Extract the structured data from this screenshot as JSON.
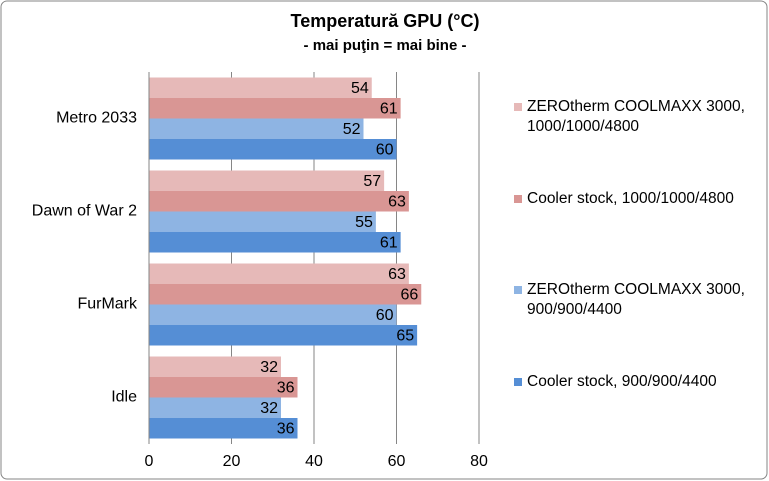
{
  "chart_data": {
    "type": "bar",
    "orientation": "horizontal",
    "title": "Temperatură  GPU (°C)",
    "subtitle": "- mai puţin = mai bine -",
    "categories": [
      "Metro 2033",
      "Dawn of War 2",
      "FurMark",
      "Idle"
    ],
    "series": [
      {
        "name": "ZEROtherm COOLMAXX 3000, 1000/1000/4800",
        "color": "#e6b9b8",
        "values": [
          54,
          57,
          63,
          32
        ]
      },
      {
        "name": "Cooler stock, 1000/1000/4800",
        "color": "#d99694",
        "values": [
          61,
          63,
          66,
          36
        ]
      },
      {
        "name": "ZEROtherm COOLMAXX 3000, 900/900/4400",
        "color": "#8eb4e3",
        "values": [
          52,
          55,
          60,
          32
        ]
      },
      {
        "name": "Cooler stock, 900/900/4400",
        "color": "#558ed5",
        "values": [
          60,
          61,
          65,
          36
        ]
      }
    ],
    "xlim": [
      0,
      80
    ],
    "xticks": [
      0,
      20,
      40,
      60,
      80
    ],
    "grid": true,
    "legend": "right"
  }
}
